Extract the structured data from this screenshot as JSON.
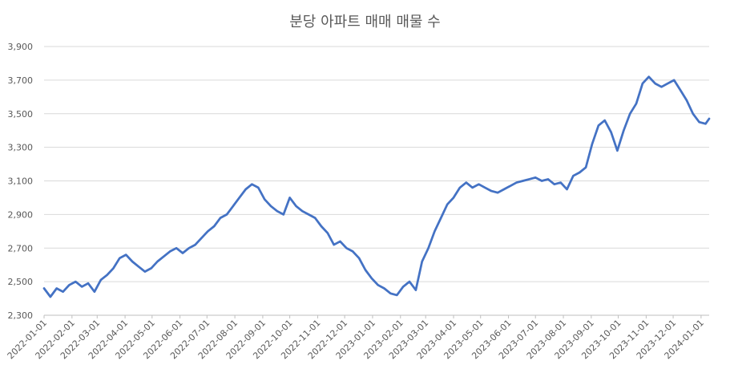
{
  "chart_data": {
    "type": "line",
    "title": "분당 아파트 매매 매물 수",
    "xlabel": "",
    "ylabel": "",
    "ylim": [
      2300,
      3900
    ],
    "y_ticks": [
      "2,300",
      "2,500",
      "2,700",
      "2,900",
      "3,100",
      "3,300",
      "3,500",
      "3,700",
      "3,900"
    ],
    "x_ticks": [
      "2022-01-01",
      "2022-02-01",
      "2022-03-01",
      "2022-04-01",
      "2022-05-01",
      "2022-06-01",
      "2022-07-01",
      "2022-08-01",
      "2022-09-01",
      "2022-10-01",
      "2022-11-01",
      "2022-12-01",
      "2023-01-01",
      "2023-02-01",
      "2023-03-01",
      "2023-04-01",
      "2023-05-01",
      "2023-06-01",
      "2023-07-01",
      "2023-08-01",
      "2023-09-01",
      "2023-10-01",
      "2023-11-01",
      "2023-12-01",
      "2024-01-01"
    ],
    "grid": true,
    "legend": "none",
    "line_color": "#4472c4",
    "series": [
      {
        "x": [
          "2022-01-01",
          "2022-01-08",
          "2022-01-15",
          "2022-01-22",
          "2022-01-29",
          "2022-02-05",
          "2022-02-12",
          "2022-02-19",
          "2022-02-26",
          "2022-03-05",
          "2022-03-12",
          "2022-03-19",
          "2022-03-26",
          "2022-04-02",
          "2022-04-09",
          "2022-04-16",
          "2022-04-23",
          "2022-04-30",
          "2022-05-07",
          "2022-05-14",
          "2022-05-21",
          "2022-05-28",
          "2022-06-04",
          "2022-06-11",
          "2022-06-18",
          "2022-06-25",
          "2022-07-02",
          "2022-07-09",
          "2022-07-16",
          "2022-07-23",
          "2022-07-30",
          "2022-08-06",
          "2022-08-13",
          "2022-08-20",
          "2022-08-27",
          "2022-09-03",
          "2022-09-10",
          "2022-09-17",
          "2022-09-24",
          "2022-10-01",
          "2022-10-08",
          "2022-10-15",
          "2022-10-22",
          "2022-10-29",
          "2022-11-05",
          "2022-11-12",
          "2022-11-19",
          "2022-11-26",
          "2022-12-03",
          "2022-12-10",
          "2022-12-17",
          "2022-12-24",
          "2022-12-31",
          "2023-01-07",
          "2023-01-14",
          "2023-01-21",
          "2023-01-28",
          "2023-02-04",
          "2023-02-11",
          "2023-02-18",
          "2023-02-25",
          "2023-03-04",
          "2023-03-11",
          "2023-03-18",
          "2023-03-25",
          "2023-04-01",
          "2023-04-08",
          "2023-04-15",
          "2023-04-22",
          "2023-04-29",
          "2023-05-06",
          "2023-05-13",
          "2023-05-20",
          "2023-05-27",
          "2023-06-03",
          "2023-06-10",
          "2023-06-17",
          "2023-06-24",
          "2023-07-01",
          "2023-07-08",
          "2023-07-15",
          "2023-07-22",
          "2023-07-29",
          "2023-08-05",
          "2023-08-12",
          "2023-08-19",
          "2023-08-26",
          "2023-09-02",
          "2023-09-09",
          "2023-09-16",
          "2023-09-23",
          "2023-09-30",
          "2023-10-07",
          "2023-10-14",
          "2023-10-21",
          "2023-10-28",
          "2023-11-04",
          "2023-11-11",
          "2023-11-18",
          "2023-11-25",
          "2023-12-02",
          "2023-12-09",
          "2023-12-16",
          "2023-12-23",
          "2023-12-30",
          "2024-01-06",
          "2024-01-10"
        ],
        "values": [
          2460,
          2410,
          2460,
          2440,
          2480,
          2500,
          2470,
          2490,
          2440,
          2510,
          2540,
          2580,
          2640,
          2660,
          2620,
          2590,
          2560,
          2580,
          2620,
          2650,
          2680,
          2700,
          2670,
          2700,
          2720,
          2760,
          2800,
          2830,
          2880,
          2900,
          2950,
          3000,
          3050,
          3080,
          3060,
          2990,
          2950,
          2920,
          2900,
          3000,
          2950,
          2920,
          2900,
          2880,
          2830,
          2790,
          2720,
          2740,
          2700,
          2680,
          2640,
          2570,
          2520,
          2480,
          2460,
          2430,
          2420,
          2470,
          2500,
          2450,
          2620,
          2700,
          2800,
          2880,
          2960,
          3000,
          3060,
          3090,
          3060,
          3080,
          3060,
          3040,
          3030,
          3050,
          3070,
          3090,
          3100,
          3110,
          3120,
          3100,
          3110,
          3080,
          3090,
          3050,
          3130,
          3150,
          3180,
          3320,
          3430,
          3460,
          3390,
          3280,
          3400,
          3500,
          3560,
          3680,
          3720,
          3680,
          3660,
          3680,
          3700,
          3640,
          3580,
          3500,
          3450,
          3440,
          3470
        ]
      }
    ]
  }
}
